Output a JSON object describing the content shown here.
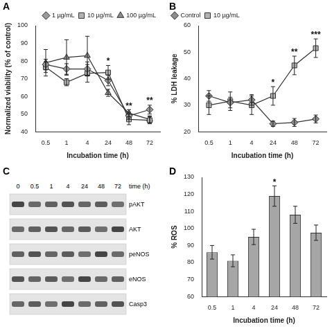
{
  "chart_data": [
    {
      "panel": "A",
      "type": "line",
      "x_label": "Incubation time (h)",
      "y_label": "Normalized viability (% of control)",
      "categories": [
        "0.5",
        "1",
        "4",
        "24",
        "48",
        "72"
      ],
      "series": [
        {
          "name": "1 µg/mL",
          "color": "#9a9a9a",
          "marker": "diamond",
          "values": [
            78,
            75.5,
            75.5,
            69,
            49,
            52.5
          ],
          "errors": [
            3,
            3,
            4,
            3,
            2,
            2.5
          ]
        },
        {
          "name": "10 µg/mL",
          "color": "#b3b3b3",
          "marker": "square",
          "values": [
            76.5,
            68,
            73,
            73.5,
            47,
            46.5
          ],
          "errors": [
            3,
            2,
            5,
            4,
            3,
            2
          ]
        },
        {
          "name": "100 µg/mL",
          "color": "#8c8c8c",
          "marker": "triangle",
          "values": [
            79,
            82,
            83,
            62,
            50.5,
            47
          ],
          "errors": [
            7.5,
            10,
            11,
            2,
            2,
            2
          ]
        }
      ],
      "ylim": [
        40,
        100
      ],
      "yticks": [
        40,
        50,
        60,
        70,
        80,
        90,
        100
      ],
      "grid": false,
      "legend": "top-right",
      "annotations": [
        {
          "x": "24",
          "y": 79,
          "text": "*"
        },
        {
          "x": "48",
          "y": 53.5,
          "text": "**"
        },
        {
          "x": "72",
          "y": 56.5,
          "text": "**"
        }
      ]
    },
    {
      "panel": "B",
      "type": "line",
      "x_label": "Incubation time (h)",
      "y_label": "% LDH leakage",
      "categories": [
        "0.5",
        "1",
        "4",
        "24",
        "48",
        "72"
      ],
      "series": [
        {
          "name": "Control",
          "color": "#8c8c8c",
          "marker": "diamond",
          "values": [
            33.5,
            31,
            32,
            23,
            23.5,
            24.8
          ],
          "errors": [
            2,
            2,
            2,
            1,
            1.5,
            1.5
          ]
        },
        {
          "name": "10 µg/mL",
          "color": "#b3b3b3",
          "marker": "square",
          "values": [
            30,
            31.5,
            30,
            33.5,
            45,
            51.5
          ],
          "errors": [
            3.5,
            3.5,
            3.5,
            3.5,
            3.5,
            3.5
          ]
        }
      ],
      "ylim": [
        20,
        60
      ],
      "yticks": [
        20,
        30,
        40,
        50,
        60
      ],
      "grid": false,
      "legend": "top-left",
      "annotations": [
        {
          "x": "24",
          "y": 38,
          "text": "*"
        },
        {
          "x": "48",
          "y": 49.5,
          "text": "**"
        },
        {
          "x": "72",
          "y": 56,
          "text": "***"
        }
      ]
    },
    {
      "panel": "D",
      "type": "bar",
      "x_label": "Incubation time (h)",
      "y_label": "% ROS",
      "categories": [
        "0.5",
        "1",
        "4",
        "24",
        "48",
        "72"
      ],
      "values": [
        86,
        81,
        95,
        119,
        108,
        97.5
      ],
      "errors": [
        4,
        3.5,
        4.5,
        6,
        5,
        4.5
      ],
      "color": "#a6a6a6",
      "ylim": [
        60,
        130
      ],
      "yticks": [
        60,
        70,
        80,
        90,
        100,
        110,
        120,
        130
      ],
      "grid": false,
      "annotations": [
        {
          "x": "24",
          "y": 126,
          "text": "*"
        }
      ]
    }
  ],
  "blot": {
    "panel": "C",
    "lane_header": "time (h)",
    "lanes": [
      "0",
      "0.5",
      "1",
      "4",
      "24",
      "48",
      "72"
    ],
    "rows": [
      "pAKT",
      "AKT",
      "peNOS",
      "eNOS",
      "Casp3"
    ]
  }
}
